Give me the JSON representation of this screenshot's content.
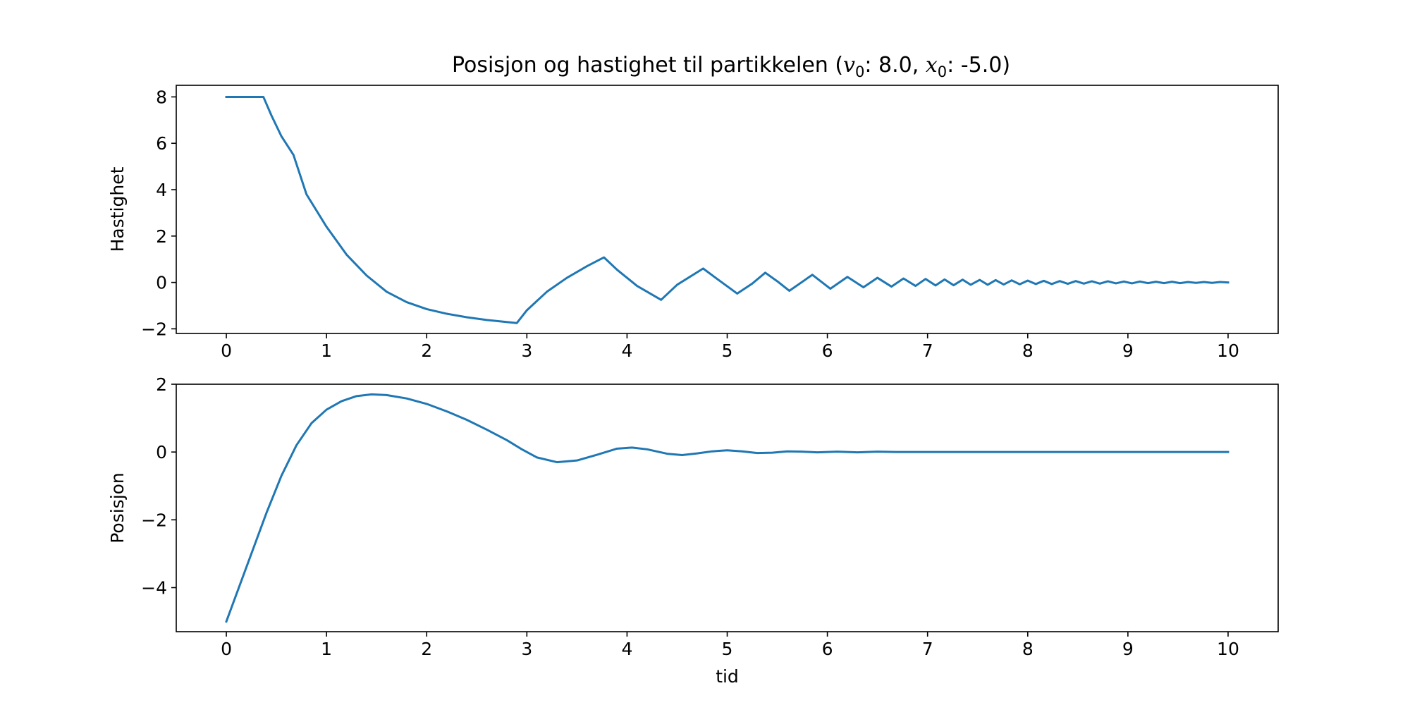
{
  "figure": {
    "title": {
      "prefix": "Posisjon og hastighet til partikkelen (",
      "v_sym": "v",
      "v_sub": "0",
      "v_sep": ": ",
      "v0": "8.0",
      "mid": ", ",
      "x_sym": "x",
      "x_sub": "0",
      "x_sep": ": ",
      "x0": "-5.0",
      "suffix": ")"
    },
    "line_color": "#1f77b4"
  },
  "chart_data": [
    {
      "type": "line",
      "title": "",
      "xlabel": "",
      "ylabel": "Hastighet",
      "xlim": [
        -0.5,
        10.5
      ],
      "ylim": [
        -2.2,
        8.5
      ],
      "xticks": [
        0,
        1,
        2,
        3,
        4,
        5,
        6,
        7,
        8,
        9,
        10
      ],
      "xtick_labels": [
        "0",
        "1",
        "2",
        "3",
        "4",
        "5",
        "6",
        "7",
        "8",
        "9",
        "10"
      ],
      "yticks": [
        8,
        6,
        4,
        2,
        0,
        -2
      ],
      "ytick_labels": [
        "8",
        "6",
        "4",
        "2",
        "0",
        "−2"
      ],
      "grid": false,
      "series": [
        {
          "x": [
            0,
            0.37,
            0.45,
            0.55,
            0.67,
            0.8,
            1.0,
            1.2,
            1.4,
            1.6,
            1.8,
            2.0,
            2.2,
            2.4,
            2.6,
            2.9,
            3.0,
            3.2,
            3.4,
            3.6,
            3.77,
            3.9,
            4.1,
            4.34,
            4.5,
            4.76,
            4.9,
            5.1,
            5.25,
            5.38,
            5.5,
            5.62,
            5.85,
            6.03,
            6.2,
            6.36,
            6.5,
            6.64,
            6.76,
            6.88,
            6.98,
            7.08,
            7.17,
            7.26,
            7.35,
            7.43,
            7.52,
            7.6,
            7.68,
            7.76,
            7.84,
            7.92,
            8.0,
            8.08,
            8.16,
            8.24,
            8.32,
            8.4,
            8.48,
            8.56,
            8.64,
            8.72,
            8.8,
            8.88,
            8.96,
            9.04,
            9.12,
            9.2,
            9.28,
            9.36,
            9.44,
            9.52,
            9.6,
            9.68,
            9.76,
            9.84,
            9.92,
            10.0
          ],
          "y": [
            8.0,
            8.0,
            7.2,
            6.3,
            5.5,
            3.8,
            2.4,
            1.2,
            0.3,
            -0.4,
            -0.85,
            -1.15,
            -1.35,
            -1.5,
            -1.62,
            -1.75,
            -1.2,
            -0.4,
            0.2,
            0.7,
            1.08,
            0.55,
            -0.15,
            -0.75,
            -0.1,
            0.6,
            0.15,
            -0.48,
            -0.05,
            0.42,
            0.05,
            -0.36,
            0.33,
            -0.27,
            0.24,
            -0.21,
            0.2,
            -0.18,
            0.17,
            -0.15,
            0.15,
            -0.13,
            0.13,
            -0.12,
            0.12,
            -0.1,
            0.11,
            -0.1,
            0.1,
            -0.09,
            0.09,
            -0.08,
            0.08,
            -0.07,
            0.07,
            -0.07,
            0.06,
            -0.06,
            0.06,
            -0.05,
            0.05,
            -0.05,
            0.05,
            -0.04,
            0.04,
            -0.04,
            0.04,
            -0.03,
            0.03,
            -0.03,
            0.03,
            -0.03,
            0.02,
            -0.02,
            0.02,
            -0.02,
            0.02,
            0.0
          ]
        }
      ]
    },
    {
      "type": "line",
      "title": "",
      "xlabel": "tid",
      "ylabel": "Posisjon",
      "xlim": [
        -0.5,
        10.5
      ],
      "ylim": [
        -5.3,
        2.0
      ],
      "xticks": [
        0,
        1,
        2,
        3,
        4,
        5,
        6,
        7,
        8,
        9,
        10
      ],
      "xtick_labels": [
        "0",
        "1",
        "2",
        "3",
        "4",
        "5",
        "6",
        "7",
        "8",
        "9",
        "10"
      ],
      "yticks": [
        2,
        0,
        -2,
        -4
      ],
      "ytick_labels": [
        "2",
        "0",
        "−2",
        "−4"
      ],
      "grid": false,
      "series": [
        {
          "x": [
            0,
            0.2,
            0.4,
            0.55,
            0.7,
            0.85,
            1.0,
            1.15,
            1.3,
            1.45,
            1.6,
            1.8,
            2.0,
            2.2,
            2.4,
            2.6,
            2.8,
            2.95,
            3.1,
            3.3,
            3.5,
            3.7,
            3.9,
            4.05,
            4.2,
            4.4,
            4.55,
            4.7,
            4.85,
            5.0,
            5.15,
            5.3,
            5.45,
            5.6,
            5.75,
            5.9,
            6.1,
            6.3,
            6.5,
            6.7,
            6.9,
            7.1,
            7.4,
            7.8,
            8.2,
            8.6,
            9.0,
            9.5,
            10.0
          ],
          "y": [
            -5.0,
            -3.4,
            -1.8,
            -0.7,
            0.2,
            0.85,
            1.25,
            1.5,
            1.65,
            1.7,
            1.68,
            1.58,
            1.42,
            1.2,
            0.95,
            0.66,
            0.35,
            0.08,
            -0.16,
            -0.3,
            -0.25,
            -0.08,
            0.1,
            0.13,
            0.08,
            -0.05,
            -0.09,
            -0.04,
            0.02,
            0.05,
            0.02,
            -0.03,
            -0.02,
            0.02,
            0.01,
            -0.01,
            0.01,
            -0.01,
            0.01,
            0.0,
            0.0,
            0.0,
            0.0,
            0.0,
            0.0,
            0.0,
            0.0,
            0.0,
            0.0
          ]
        }
      ]
    }
  ]
}
